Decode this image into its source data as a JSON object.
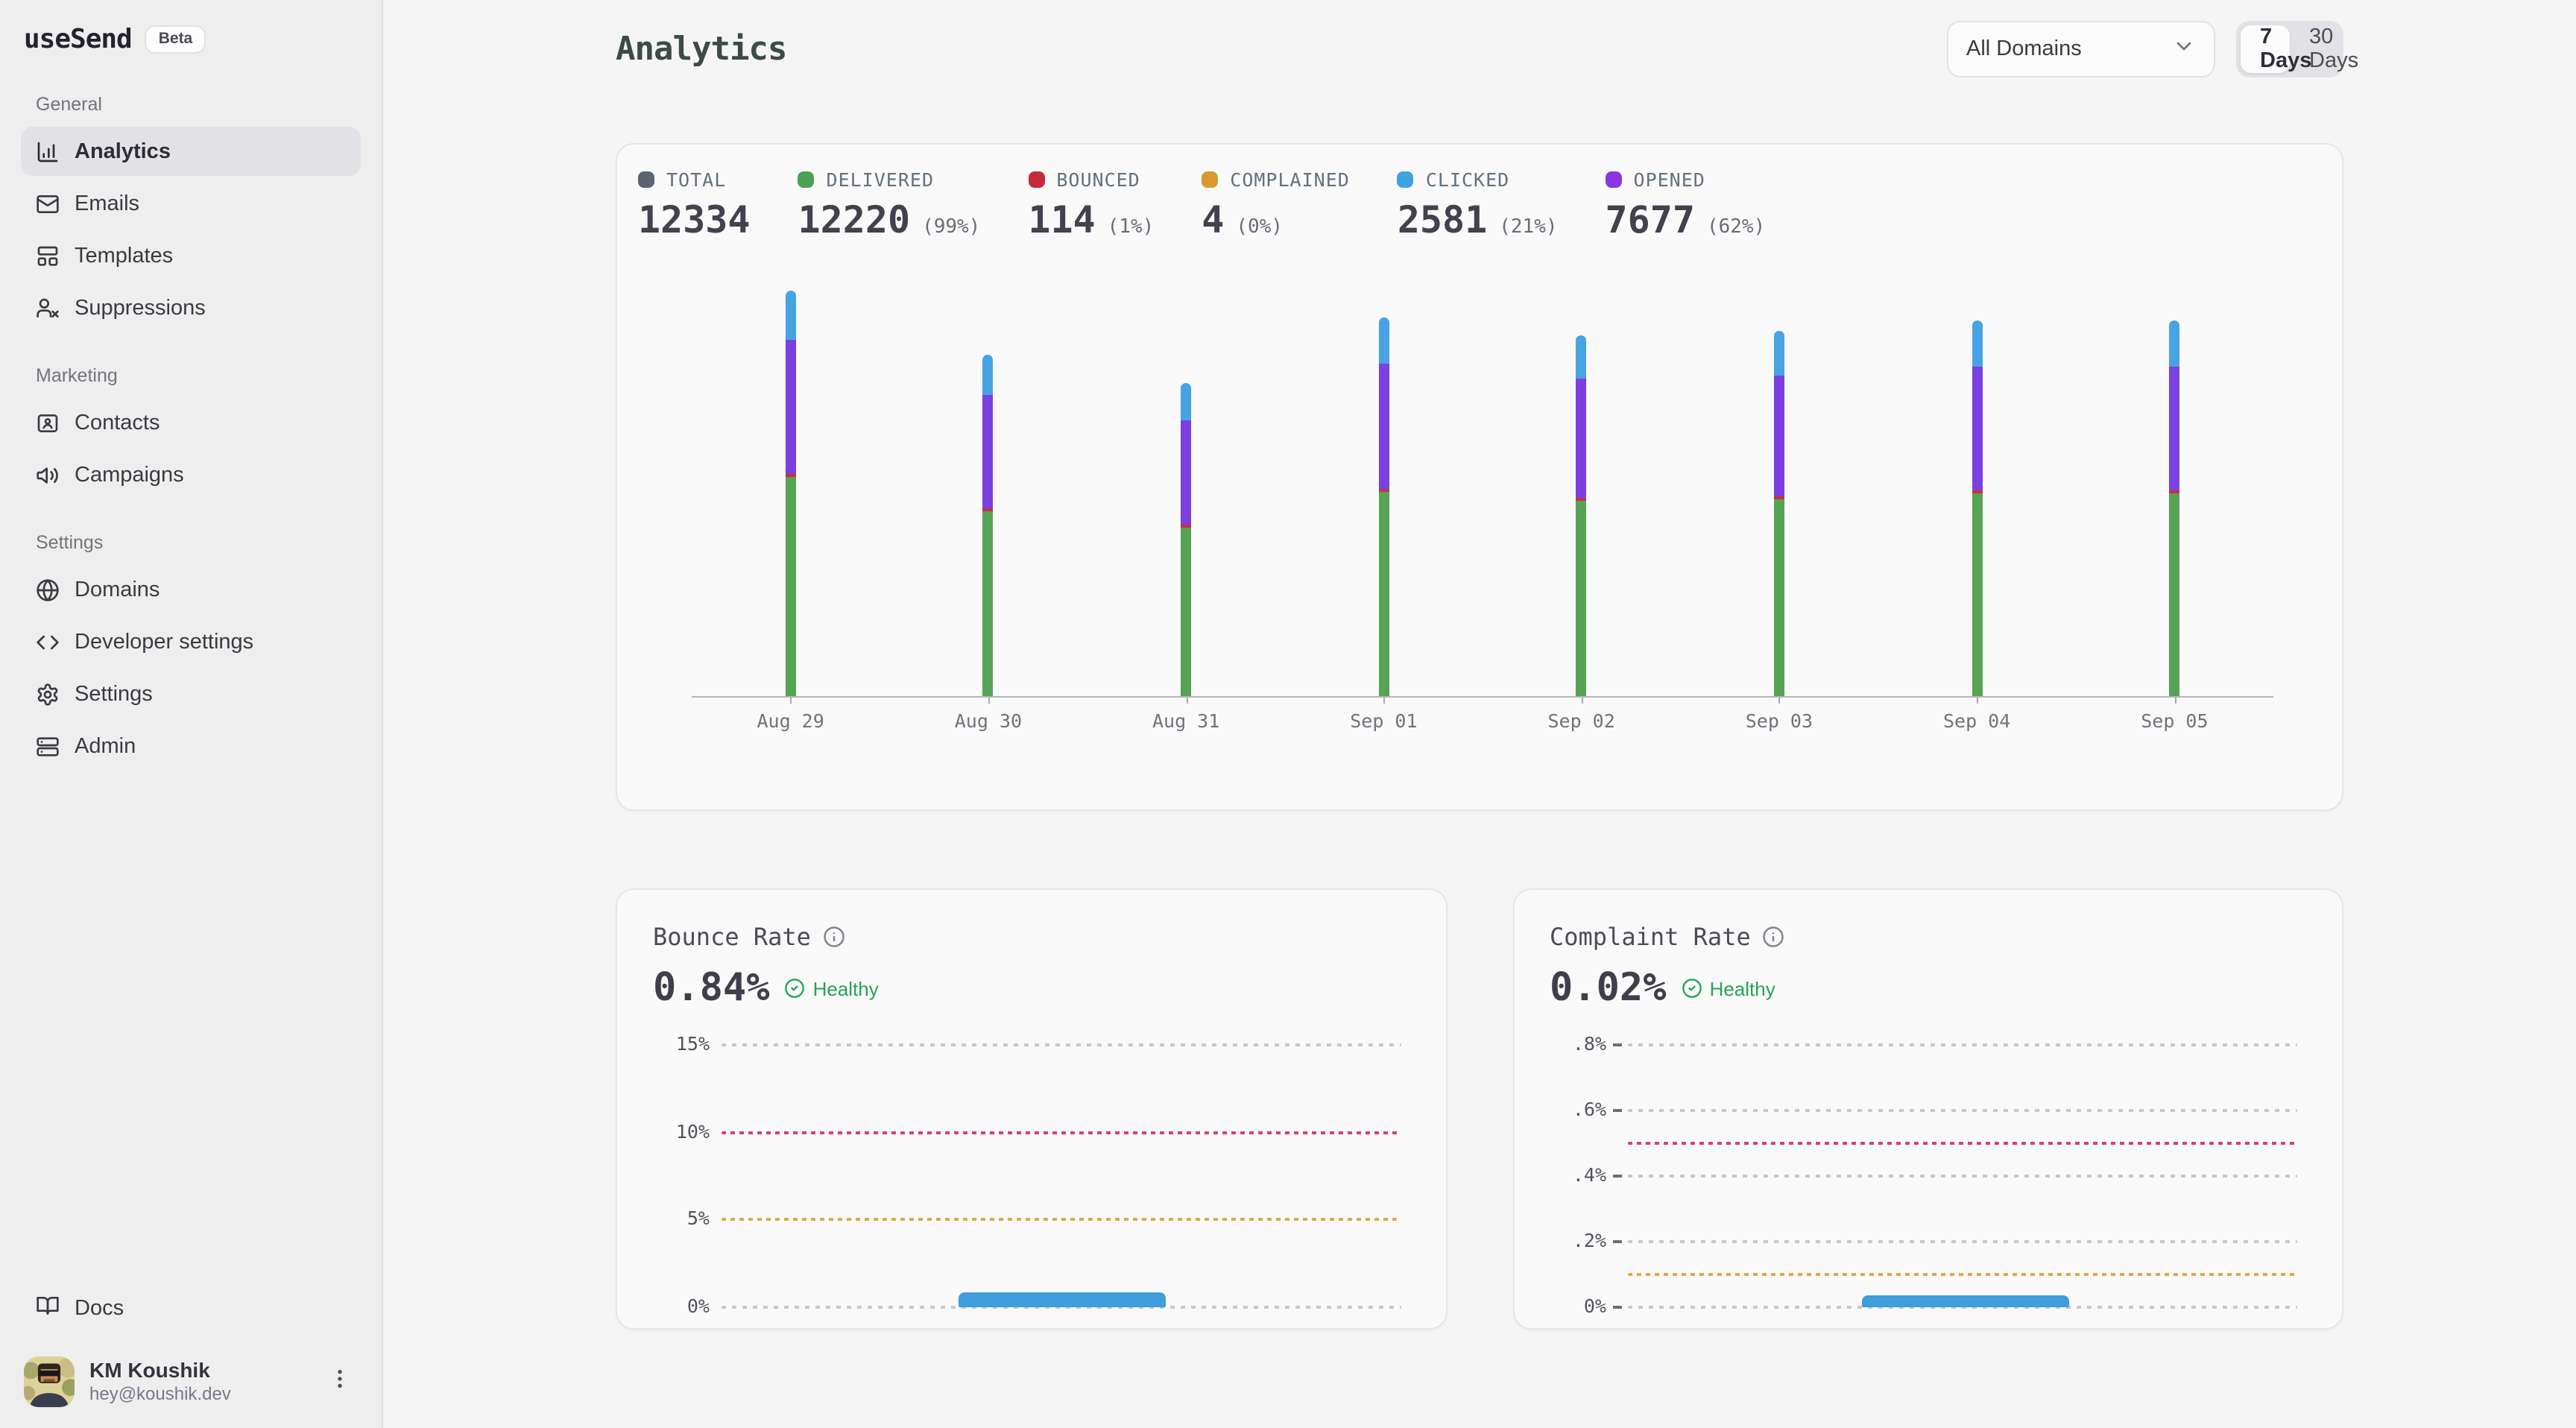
{
  "app": {
    "name": "useSend",
    "badge": "Beta"
  },
  "colors": {
    "accent_blue": "#41a2e2",
    "green": "#55a355",
    "red": "#c43341",
    "amber": "#d9992c",
    "purple": "#7c3fe0",
    "opened_dot": "#8a35e2",
    "total_dot": "#5b6471",
    "healthy_green": "#27a351",
    "threshold_red": "#d6426a",
    "threshold_amber": "#dfa848",
    "rate_bar_blue": "#3f9ddb"
  },
  "sidebar": {
    "sections": [
      {
        "label": "General",
        "items": [
          {
            "label": "Analytics",
            "icon": "chart-column-icon",
            "active": true
          },
          {
            "label": "Emails",
            "icon": "mail-icon",
            "active": false
          },
          {
            "label": "Templates",
            "icon": "layout-template-icon",
            "active": false
          },
          {
            "label": "Suppressions",
            "icon": "user-x-icon",
            "active": false
          }
        ]
      },
      {
        "label": "Marketing",
        "items": [
          {
            "label": "Contacts",
            "icon": "contact-card-icon",
            "active": false
          },
          {
            "label": "Campaigns",
            "icon": "megaphone-icon",
            "active": false
          }
        ]
      },
      {
        "label": "Settings",
        "items": [
          {
            "label": "Domains",
            "icon": "globe-icon",
            "active": false
          },
          {
            "label": "Developer settings",
            "icon": "code-icon",
            "active": false
          },
          {
            "label": "Settings",
            "icon": "gear-icon",
            "active": false
          },
          {
            "label": "Admin",
            "icon": "server-icon",
            "active": false
          }
        ]
      }
    ],
    "docs_label": "Docs",
    "user": {
      "name": "KM Koushik",
      "email": "hey@koushik.dev"
    }
  },
  "header": {
    "title": "Analytics",
    "domain_filter_value": "All Domains",
    "range_options": [
      "7 Days",
      "30 Days"
    ],
    "active_range": "7 Days"
  },
  "stats": [
    {
      "label": "TOTAL",
      "value": "12334",
      "pct": "",
      "color": "#5b6471"
    },
    {
      "label": "DELIVERED",
      "value": "12220",
      "pct": "(99%)",
      "color": "#4ca154"
    },
    {
      "label": "BOUNCED",
      "value": "114",
      "pct": "(1%)",
      "color": "#c42a3a"
    },
    {
      "label": "COMPLAINED",
      "value": "4",
      "pct": "(0%)",
      "color": "#d9992c"
    },
    {
      "label": "CLICKED",
      "value": "2581",
      "pct": "(21%)",
      "color": "#41a2e2"
    },
    {
      "label": "OPENED",
      "value": "7677",
      "pct": "(62%)",
      "color": "#8a35e2"
    }
  ],
  "chart_data": [
    {
      "type": "bar",
      "stacked": true,
      "title": "Email volume by day (stacked: delivered/bounced/opened/clicked)",
      "categories": [
        "Aug 29",
        "Aug 30",
        "Aug 31",
        "Sep 01",
        "Sep 02",
        "Sep 03",
        "Sep 04",
        "Sep 05"
      ],
      "value_unit": "percent of plot height (daily counts not labeled in UI)",
      "series": [
        {
          "name": "Delivered",
          "color": "#55a355",
          "values": [
            53.5,
            45.1,
            41.1,
            49.8,
            47.6,
            48.0,
            49.5,
            49.5
          ]
        },
        {
          "name": "Bounced",
          "color": "#c43341",
          "values": [
            0.7,
            0.7,
            0.7,
            0.7,
            0.7,
            0.7,
            0.7,
            0.7
          ]
        },
        {
          "name": "Opened",
          "color": "#7c3fe0",
          "values": [
            32.7,
            27.6,
            25.5,
            30.5,
            29.1,
            29.5,
            30.2,
            30.2
          ]
        },
        {
          "name": "Clicked",
          "color": "#47a3e2",
          "values": [
            12.0,
            9.8,
            9.1,
            11.3,
            10.5,
            10.9,
            11.3,
            11.3
          ]
        }
      ],
      "grid": false,
      "legend_position": "top (stats row)"
    },
    {
      "type": "bar",
      "title": "Bounce Rate",
      "current_value": "0.84%",
      "status": "Healthy",
      "ylim": [
        0,
        15
      ],
      "gridlines": [
        {
          "label": "15%",
          "value": 15,
          "style": "gray"
        },
        {
          "label": "10%",
          "value": 10,
          "style": "red"
        },
        {
          "label": "5%",
          "value": 5,
          "style": "amber"
        },
        {
          "label": "0%",
          "value": 0,
          "style": "gray"
        }
      ],
      "ticks": false,
      "bar": {
        "value": 0.84,
        "x_start_pct": 35,
        "x_end_pct": 65.5,
        "color": "#3f9ddb"
      }
    },
    {
      "type": "bar",
      "title": "Complaint Rate",
      "current_value": "0.02%",
      "status": "Healthy",
      "ylim": [
        0,
        0.8
      ],
      "gridlines": [
        {
          "label": ".8%",
          "value": 0.8,
          "style": "gray"
        },
        {
          "label": ".6%",
          "value": 0.6,
          "style": "gray"
        },
        {
          "label": ".4%",
          "value": 0.4,
          "style": "gray"
        },
        {
          "label": ".2%",
          "value": 0.2,
          "style": "gray"
        },
        {
          "label": "0%",
          "value": 0,
          "style": "gray"
        },
        {
          "label": "",
          "value": 0.5,
          "style": "red"
        },
        {
          "label": "",
          "value": 0.1,
          "style": "amber"
        }
      ],
      "ticks": true,
      "bar": {
        "value": 0.02,
        "x_start_pct": 35,
        "x_end_pct": 66,
        "color": "#3f9ddb"
      }
    }
  ]
}
